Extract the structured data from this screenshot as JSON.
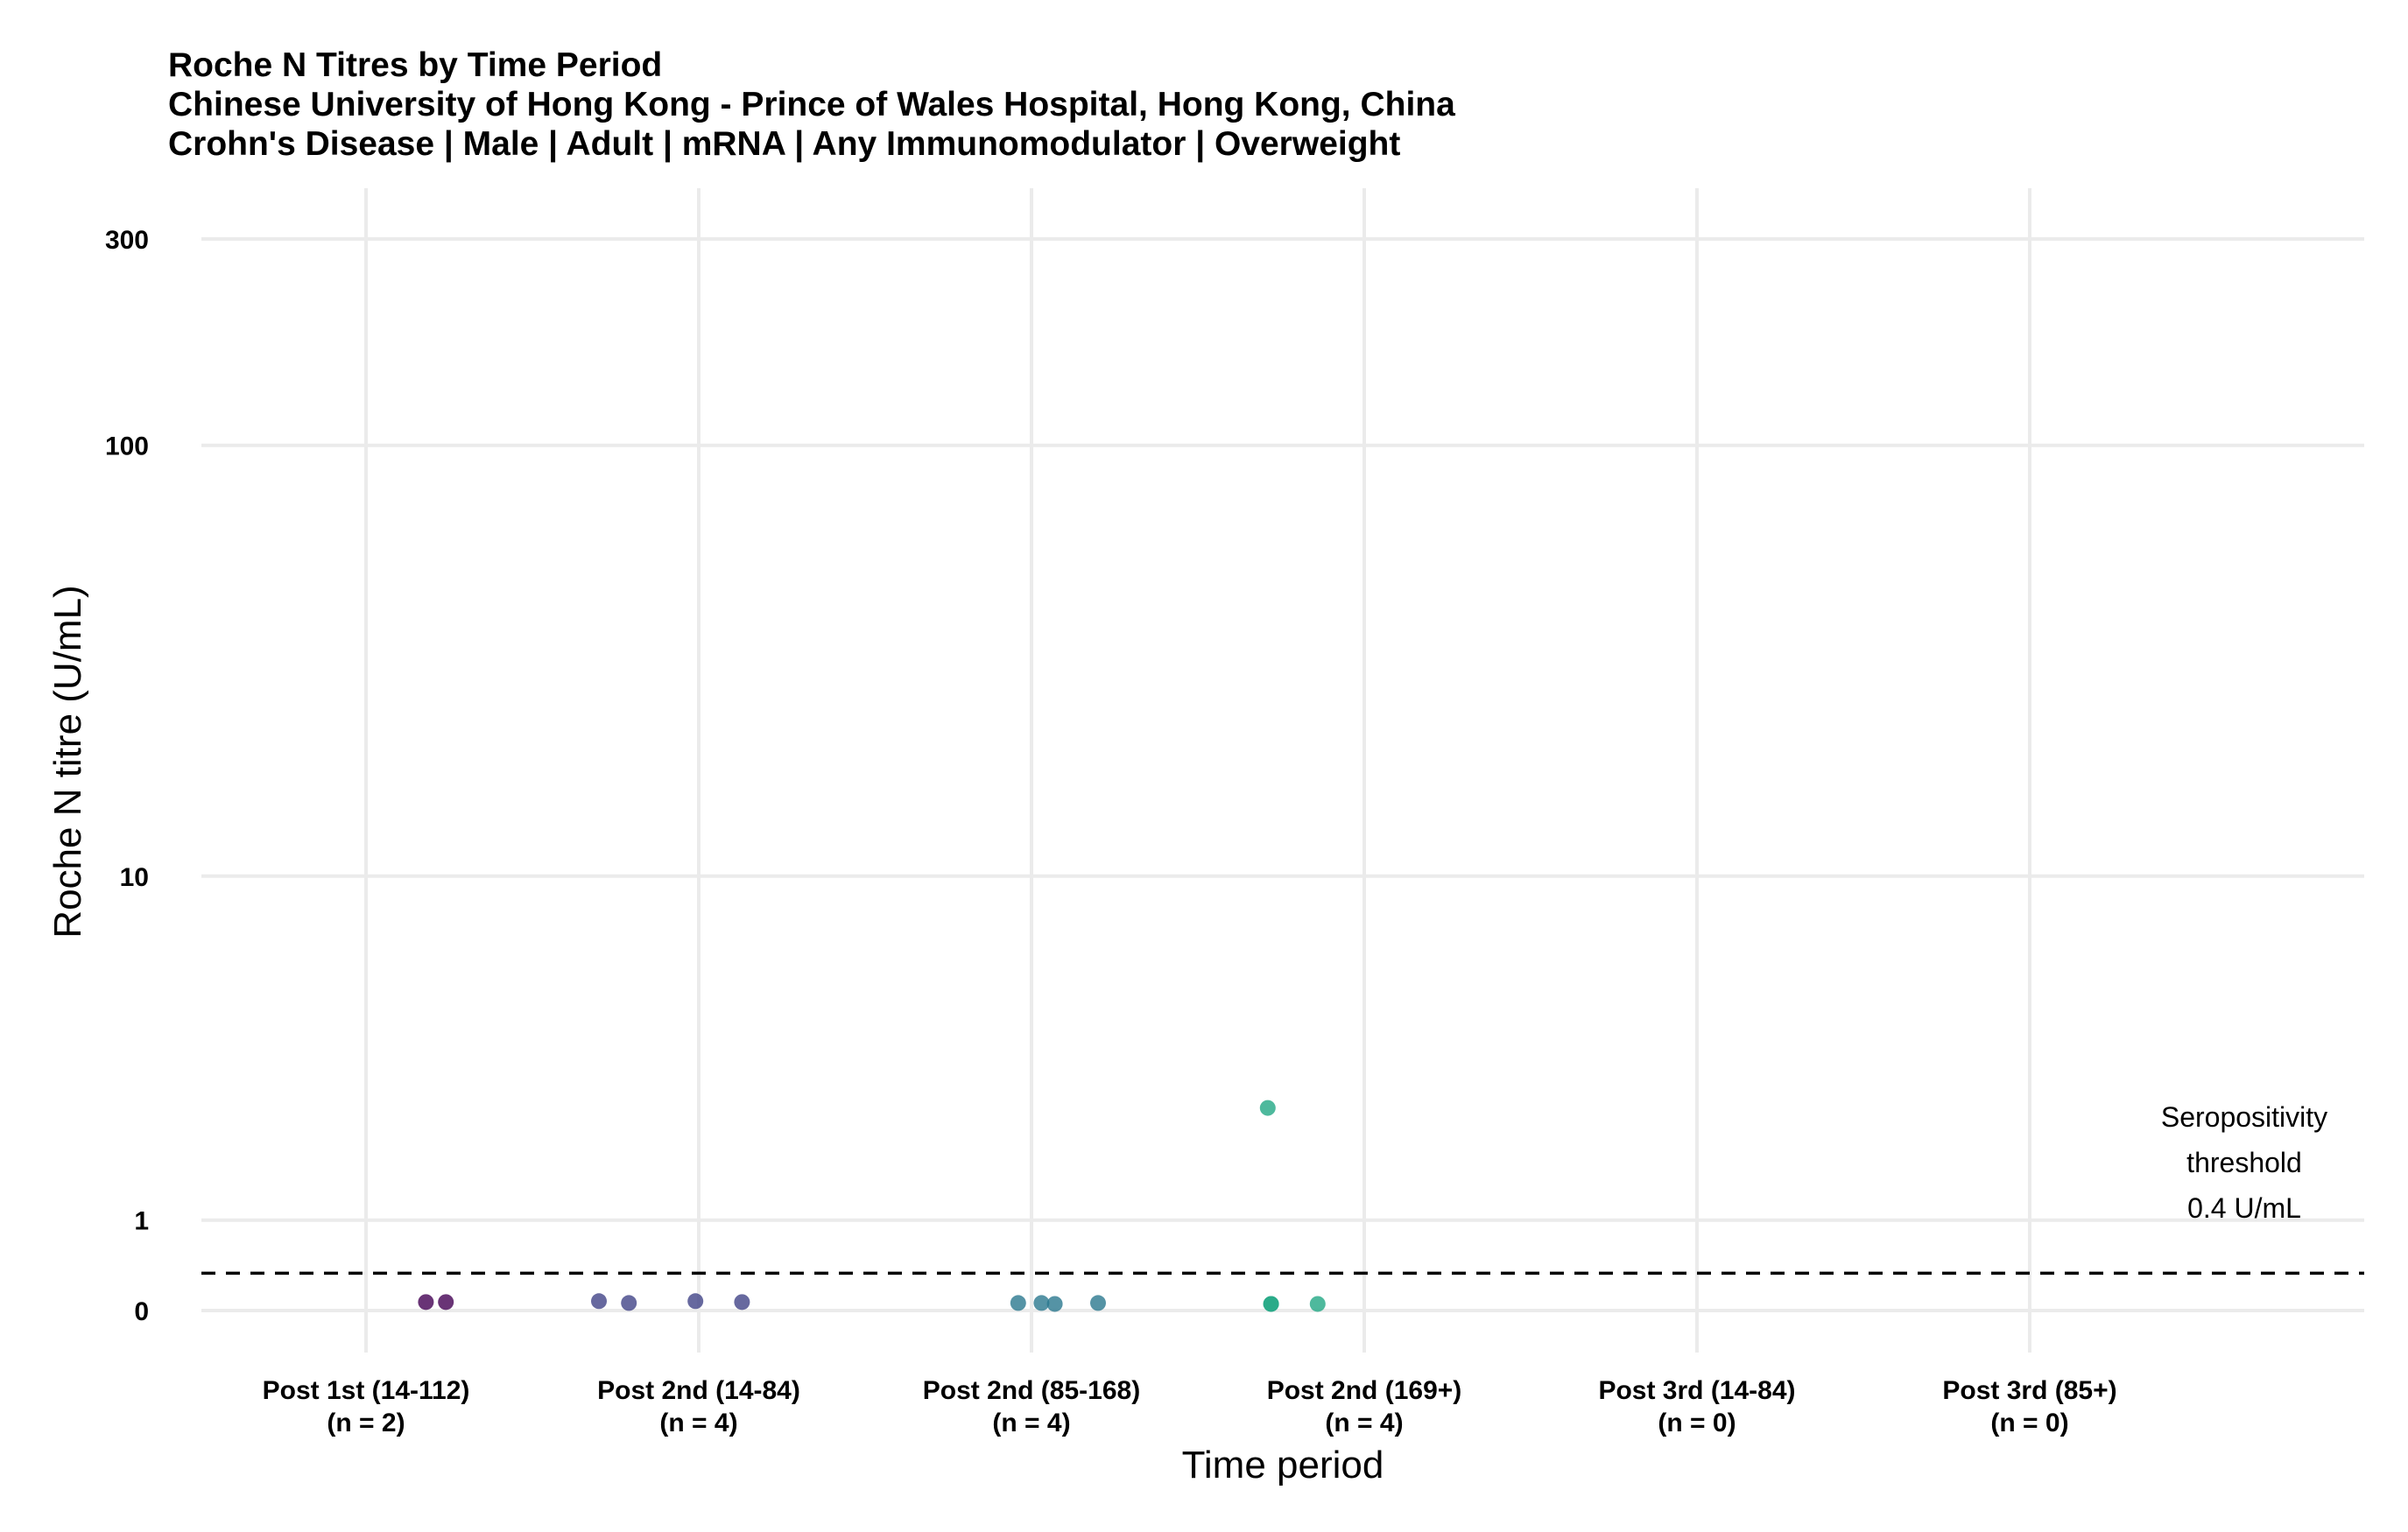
{
  "chart_data": {
    "type": "scatter",
    "title": "Roche N Titres by Time Period",
    "subtitle_lines": [
      "Chinese University of Hong Kong - Prince of Wales Hospital, Hong Kong, China",
      "Crohn's Disease | Male | Adult | mRNA | Any Immunomodulator | Overweight"
    ],
    "xlabel": "Time period",
    "ylabel": "Roche N titre (U/mL)",
    "y_scale": "pseudo-log",
    "y_ticks": [
      0,
      1,
      10,
      100,
      300
    ],
    "ylim": [
      -0.2,
      400
    ],
    "grid": true,
    "categories": [
      {
        "label": "Post 1st (14-112)",
        "n_label": "(n = 2)"
      },
      {
        "label": "Post 2nd (14-84)",
        "n_label": "(n = 4)"
      },
      {
        "label": "Post 2nd (85-168)",
        "n_label": "(n = 4)"
      },
      {
        "label": "Post 2nd (169+)",
        "n_label": "(n = 4)"
      },
      {
        "label": "Post 3rd (14-84)",
        "n_label": "(n = 0)"
      },
      {
        "label": "Post 3rd (85+)",
        "n_label": "(n = 0)"
      }
    ],
    "series": [
      {
        "category": "Post 1st (14-112)",
        "color": "#440154",
        "points": [
          {
            "jitter": 0.18,
            "y": 0.09
          },
          {
            "jitter": 0.24,
            "y": 0.09
          }
        ]
      },
      {
        "category": "Post 2nd (14-84)",
        "color": "#414487",
        "points": [
          {
            "jitter": -0.3,
            "y": 0.1
          },
          {
            "jitter": -0.21,
            "y": 0.08
          },
          {
            "jitter": -0.01,
            "y": 0.1
          },
          {
            "jitter": 0.13,
            "y": 0.09
          }
        ]
      },
      {
        "category": "Post 2nd (85-168)",
        "color": "#2A788E",
        "points": [
          {
            "jitter": -0.04,
            "y": 0.08
          },
          {
            "jitter": 0.03,
            "y": 0.08
          },
          {
            "jitter": 0.07,
            "y": 0.07
          },
          {
            "jitter": 0.2,
            "y": 0.08
          }
        ]
      },
      {
        "category": "Post 2nd (169+)",
        "color": "#22A884",
        "points": [
          {
            "jitter": -0.29,
            "y": 2.6
          },
          {
            "jitter": -0.28,
            "y": 0.07
          },
          {
            "jitter": -0.28,
            "y": 0.07
          },
          {
            "jitter": -0.14,
            "y": 0.07
          }
        ]
      }
    ],
    "threshold": {
      "value": 0.4,
      "lines": [
        "Seropositivity",
        "threshold",
        "0.4 U/mL"
      ]
    }
  }
}
